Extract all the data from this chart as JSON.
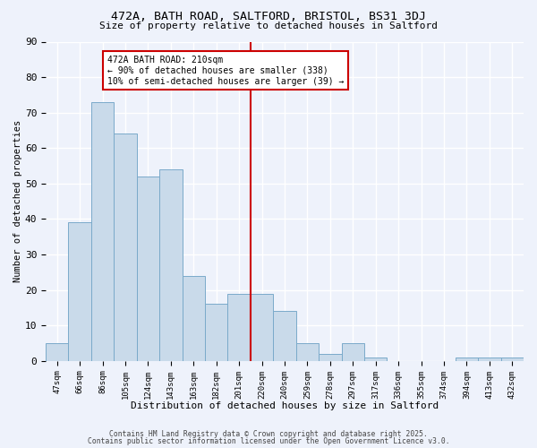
{
  "title": "472A, BATH ROAD, SALTFORD, BRISTOL, BS31 3DJ",
  "subtitle": "Size of property relative to detached houses in Saltford",
  "xlabel": "Distribution of detached houses by size in Saltford",
  "ylabel": "Number of detached properties",
  "bar_labels": [
    "47sqm",
    "66sqm",
    "86sqm",
    "105sqm",
    "124sqm",
    "143sqm",
    "163sqm",
    "182sqm",
    "201sqm",
    "220sqm",
    "240sqm",
    "259sqm",
    "278sqm",
    "297sqm",
    "317sqm",
    "336sqm",
    "355sqm",
    "374sqm",
    "394sqm",
    "413sqm",
    "432sqm"
  ],
  "bar_values": [
    5,
    39,
    73,
    64,
    52,
    54,
    24,
    16,
    19,
    19,
    14,
    5,
    2,
    5,
    1,
    0,
    0,
    0,
    1,
    1,
    1
  ],
  "bar_color": "#c9daea",
  "bar_edge_color": "#7aaaca",
  "vline_index": 8.5,
  "vline_color": "#cc0000",
  "vline_linewidth": 1.5,
  "annotation_title": "472A BATH ROAD: 210sqm",
  "annotation_line1": "← 90% of detached houses are smaller (338)",
  "annotation_line2": "10% of semi-detached houses are larger (39) →",
  "annotation_box_edgecolor": "#cc0000",
  "annotation_bg": "#ffffff",
  "ylim": [
    0,
    90
  ],
  "yticks": [
    0,
    10,
    20,
    30,
    40,
    50,
    60,
    70,
    80,
    90
  ],
  "bg_color": "#eef2fb",
  "grid_color": "#ffffff",
  "footer1": "Contains HM Land Registry data © Crown copyright and database right 2025.",
  "footer2": "Contains public sector information licensed under the Open Government Licence v3.0."
}
